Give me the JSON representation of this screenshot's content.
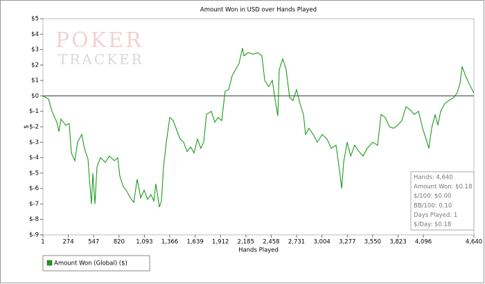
{
  "chart_data": {
    "type": "line",
    "title": "Amount Won in USD over Hands Played",
    "x_label": "Hands Played",
    "y_label": "$",
    "logo": {
      "line1": "POKER",
      "line2": "TRACKER"
    },
    "grid": false,
    "legend_position": "bottom-left",
    "xlim": [
      1,
      4640
    ],
    "xticks": [
      1,
      274,
      547,
      820,
      {
        "value": 1093,
        "label": "1,093"
      },
      {
        "value": 1366,
        "label": "1,366"
      },
      {
        "value": 1639,
        "label": "1,639"
      },
      {
        "value": 1912,
        "label": "1,912"
      },
      {
        "value": 2185,
        "label": "2,185"
      },
      {
        "value": 2458,
        "label": "2,458"
      },
      {
        "value": 2731,
        "label": "2,731"
      },
      {
        "value": 3004,
        "label": "3,004"
      },
      {
        "value": 3277,
        "label": "3,277"
      },
      {
        "value": 3550,
        "label": "3,550"
      },
      {
        "value": 3823,
        "label": "3,823"
      },
      {
        "value": 4096,
        "label": "4,096"
      },
      {
        "value": 4640,
        "label": "4,640"
      }
    ],
    "ylim": [
      -9,
      5
    ],
    "yticks": [
      {
        "value": 5,
        "label": "$5"
      },
      {
        "value": 4,
        "label": "$4"
      },
      {
        "value": 3,
        "label": "$3"
      },
      {
        "value": 2,
        "label": "$2"
      },
      {
        "value": 1,
        "label": "$1"
      },
      {
        "value": 0,
        "label": "$0"
      },
      {
        "value": -1,
        "label": "$-1"
      },
      {
        "value": -2,
        "label": "$-2"
      },
      {
        "value": -3,
        "label": "$-3"
      },
      {
        "value": -4,
        "label": "$-4"
      },
      {
        "value": -5,
        "label": "$-5"
      },
      {
        "value": -6,
        "label": "$-6"
      },
      {
        "value": -7,
        "label": "$-7"
      },
      {
        "value": -8,
        "label": "$-8"
      },
      {
        "value": -9,
        "label": "$-9"
      }
    ],
    "x": [
      1,
      61,
      98,
      150,
      173,
      195,
      247,
      284,
      307,
      344,
      374,
      419,
      448,
      486,
      508,
      523,
      538,
      560,
      583,
      620,
      672,
      717,
      769,
      806,
      829,
      866,
      896,
      941,
      978,
      1015,
      1053,
      1090,
      1127,
      1164,
      1194,
      1217,
      1254,
      1276,
      1299,
      1329,
      1366,
      1403,
      1440,
      1478,
      1515,
      1552,
      1590,
      1627,
      1664,
      1701,
      1731,
      1761,
      1813,
      1851,
      1888,
      1925,
      1962,
      2000,
      2037,
      2074,
      2112,
      2149,
      2164,
      2209,
      2261,
      2313,
      2358,
      2388,
      2432,
      2470,
      2507,
      2529,
      2544,
      2582,
      2619,
      2656,
      2693,
      2731,
      2768,
      2805,
      2828,
      2865,
      2910,
      2954,
      3007,
      3059,
      3104,
      3156,
      3193,
      3216,
      3238,
      3275,
      3313,
      3357,
      3402,
      3447,
      3491,
      3551,
      3603,
      3641,
      3685,
      3730,
      3775,
      3819,
      3864,
      3909,
      3954,
      3998,
      4043,
      4088,
      4125,
      4155,
      4185,
      4222,
      4252,
      4282,
      4326,
      4371,
      4423,
      4460,
      4490,
      4513,
      4550,
      4595,
      4640
    ],
    "series": [
      {
        "name": "Amount Won (Global) ($)",
        "color": "#1a9a1a",
        "values": [
          0,
          -0.2,
          -1.0,
          -1.7,
          -2.3,
          -1.5,
          -1.9,
          -1.8,
          -3.7,
          -4.2,
          -3.0,
          -2.5,
          -3.4,
          -4.1,
          -5.9,
          -7.0,
          -5.0,
          -7.0,
          -4.6,
          -4.0,
          -4.3,
          -3.9,
          -4.2,
          -4.0,
          -5.2,
          -5.9,
          -6.1,
          -6.6,
          -6.9,
          -5.4,
          -6.6,
          -6.1,
          -6.7,
          -6.4,
          -6.8,
          -5.7,
          -7.2,
          -6.8,
          -4.6,
          -3.0,
          -1.4,
          -1.6,
          -2.2,
          -2.8,
          -3.0,
          -3.6,
          -3.3,
          -3.7,
          -2.8,
          -3.4,
          -3.0,
          -1.2,
          -1.0,
          -1.7,
          -1.4,
          -1.6,
          0.3,
          0.4,
          1.3,
          1.7,
          2.1,
          3.1,
          2.6,
          2.8,
          2.7,
          2.8,
          2.6,
          1.0,
          0.6,
          1.0,
          -0.5,
          -1.3,
          1.7,
          2.4,
          1.7,
          -0.1,
          -0.3,
          0.4,
          -0.5,
          -1.2,
          -2.5,
          -2.1,
          -2.5,
          -3.0,
          -2.5,
          -2.8,
          -3.4,
          -3.2,
          -4.8,
          -6.0,
          -4.3,
          -3.0,
          -3.9,
          -3.2,
          -3.6,
          -3.9,
          -3.4,
          -3.0,
          -3.2,
          -1.2,
          -1.4,
          -2.0,
          -2.1,
          -1.9,
          -1.6,
          -0.7,
          -0.9,
          -1.2,
          -1.0,
          -2.1,
          -2.8,
          -3.4,
          -2.1,
          -1.2,
          -1.9,
          -1.0,
          -0.5,
          -0.3,
          -0.1,
          0.2,
          0.8,
          1.9,
          1.3,
          0.7,
          0.18
        ]
      }
    ],
    "stats": [
      "Hands: 4,640",
      "Amount Won: $0.18",
      "$/100: $0.00",
      "BB/100: 0.10",
      "Days Played: 1",
      "$/Day: $0.18"
    ]
  }
}
